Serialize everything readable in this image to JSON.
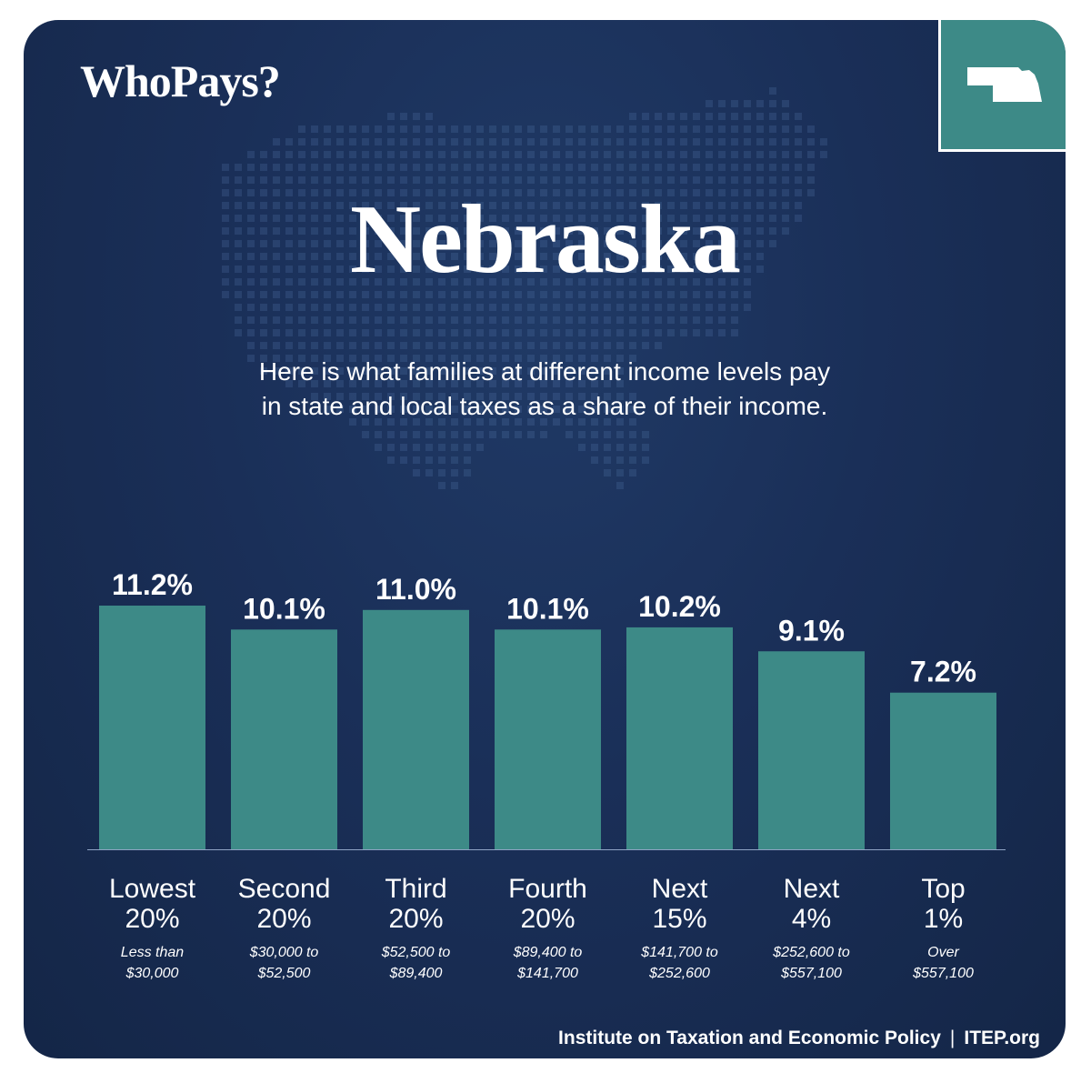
{
  "header": {
    "brand": "WhoPays?",
    "state_name": "Nebraska",
    "subtitle_line1": "Here is what families at different income levels pay",
    "subtitle_line2": "in state and local taxes as a share of their income."
  },
  "colors": {
    "background": "#1a2f58",
    "bar": "#3d8a87",
    "text": "#ffffff"
  },
  "chart_data": {
    "type": "bar",
    "categories": [
      {
        "line1": "Lowest",
        "line2": "20%",
        "range1": "Less than",
        "range2": "$30,000"
      },
      {
        "line1": "Second",
        "line2": "20%",
        "range1": "$30,000 to",
        "range2": "$52,500"
      },
      {
        "line1": "Third",
        "line2": "20%",
        "range1": "$52,500 to",
        "range2": "$89,400"
      },
      {
        "line1": "Fourth",
        "line2": "20%",
        "range1": "$89,400 to",
        "range2": "$141,700"
      },
      {
        "line1": "Next",
        "line2": "15%",
        "range1": "$141,700 to",
        "range2": "$252,600"
      },
      {
        "line1": "Next",
        "line2": "4%",
        "range1": "$252,600 to",
        "range2": "$557,100"
      },
      {
        "line1": "Top",
        "line2": "1%",
        "range1": "Over",
        "range2": "$557,100"
      }
    ],
    "values": [
      11.2,
      10.1,
      11.0,
      10.1,
      10.2,
      9.1,
      7.2
    ],
    "value_labels": [
      "11.2%",
      "10.1%",
      "11.0%",
      "10.1%",
      "10.2%",
      "9.1%",
      "7.2%"
    ],
    "ylim": [
      0,
      11.2
    ],
    "grid": false
  },
  "footer": {
    "source": "Institute on Taxation and Economic Policy",
    "separator": "|",
    "site": "ITEP.org"
  }
}
